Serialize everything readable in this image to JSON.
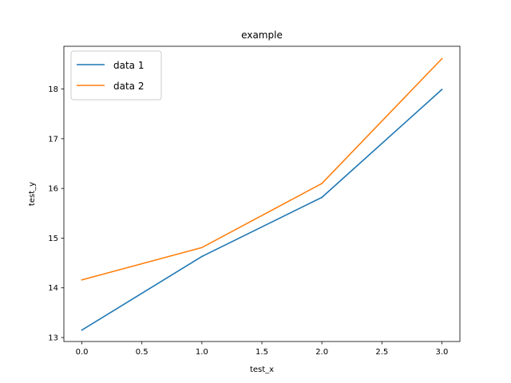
{
  "chart_data": {
    "type": "line",
    "title": "example",
    "xlabel": "test_x",
    "ylabel": "test_y",
    "x": [
      0,
      1,
      2,
      3
    ],
    "xlim": [
      -0.15,
      3.15
    ],
    "ylim": [
      12.92,
      18.86
    ],
    "xticks": [
      0.0,
      0.5,
      1.0,
      1.5,
      2.0,
      2.5,
      3.0
    ],
    "xtick_labels": [
      "0.0",
      "0.5",
      "1.0",
      "1.5",
      "2.0",
      "2.5",
      "3.0"
    ],
    "yticks": [
      13,
      14,
      15,
      16,
      17,
      18
    ],
    "ytick_labels": [
      "13",
      "14",
      "15",
      "16",
      "17",
      "18"
    ],
    "grid": false,
    "legend_position": "upper-left",
    "series": [
      {
        "name": "data 1",
        "color": "#1f77b4",
        "values": [
          13.15,
          14.63,
          15.82,
          17.99
        ]
      },
      {
        "name": "data 2",
        "color": "#ff7f0e",
        "values": [
          14.16,
          14.81,
          16.1,
          18.61
        ]
      }
    ]
  }
}
